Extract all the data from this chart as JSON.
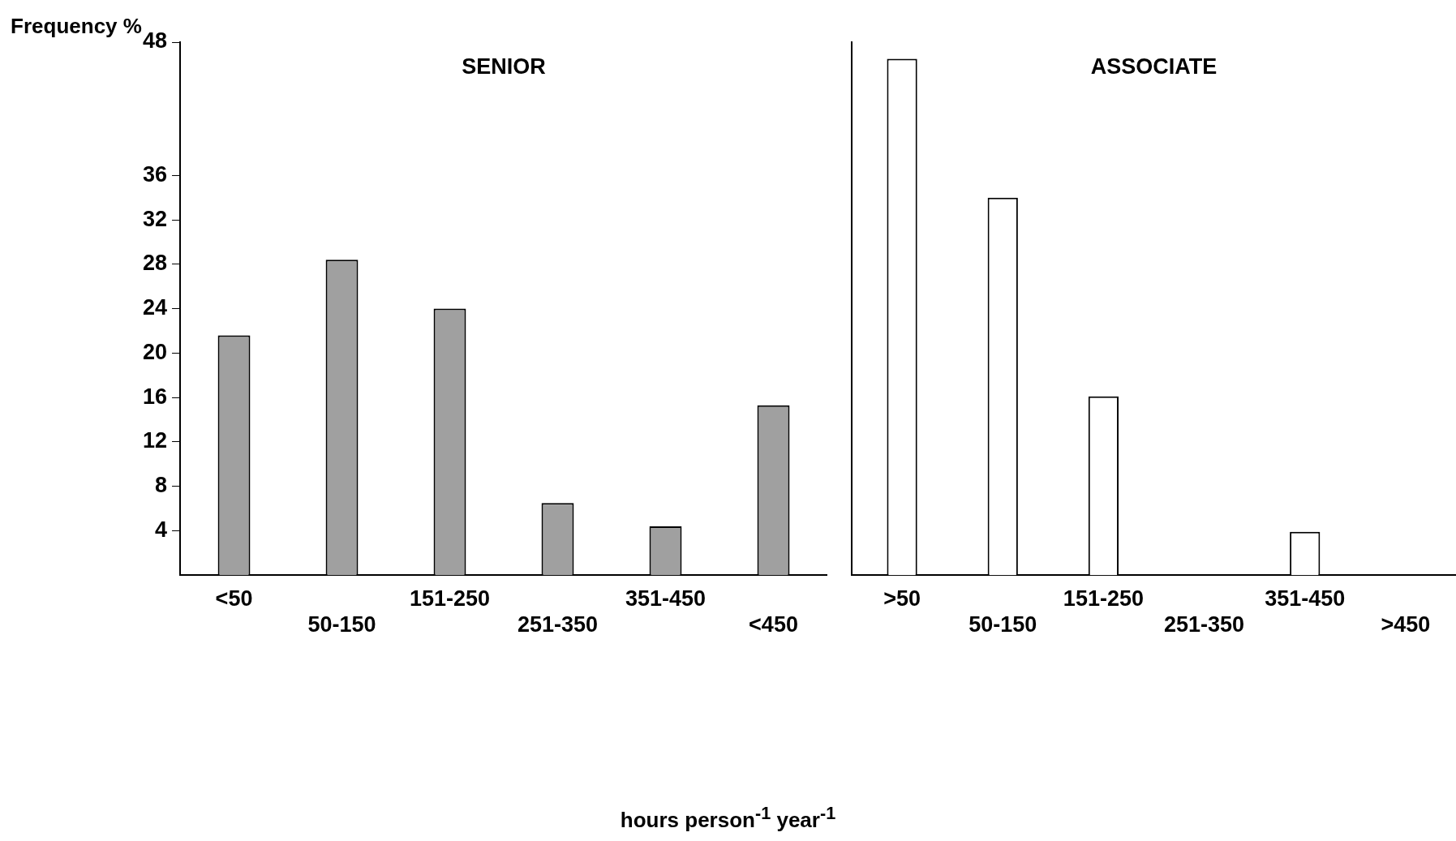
{
  "chart_data": [
    {
      "type": "bar",
      "title": "SENIOR",
      "xlabel": "hours person$^{-1}$ year$^{-1}$",
      "ylabel": "Frequency %",
      "categories": [
        "<50",
        "50-150",
        "151-250",
        "251-350",
        "351-450",
        "<450"
      ],
      "values": [
        21.6,
        28.4,
        24.0,
        6.5,
        4.4,
        15.3
      ],
      "color": "#a0a0a0",
      "ylim": [
        0,
        48
      ],
      "yticks": [
        4,
        8,
        12,
        16,
        20,
        24,
        28,
        32,
        36,
        48
      ]
    },
    {
      "type": "bar",
      "title": "ASSOCIATE",
      "categories": [
        ">50",
        "50-150",
        "151-250",
        "251-350",
        "351-450",
        ">450"
      ],
      "values": [
        46.5,
        34.0,
        16.1,
        0,
        3.9,
        0
      ],
      "color": "#ffffff",
      "ylim": [
        0,
        48
      ],
      "yticks": [
        4,
        8,
        12,
        16,
        20,
        24,
        28,
        32,
        36,
        48
      ],
      "tick_labels": "x"
    }
  ]
}
